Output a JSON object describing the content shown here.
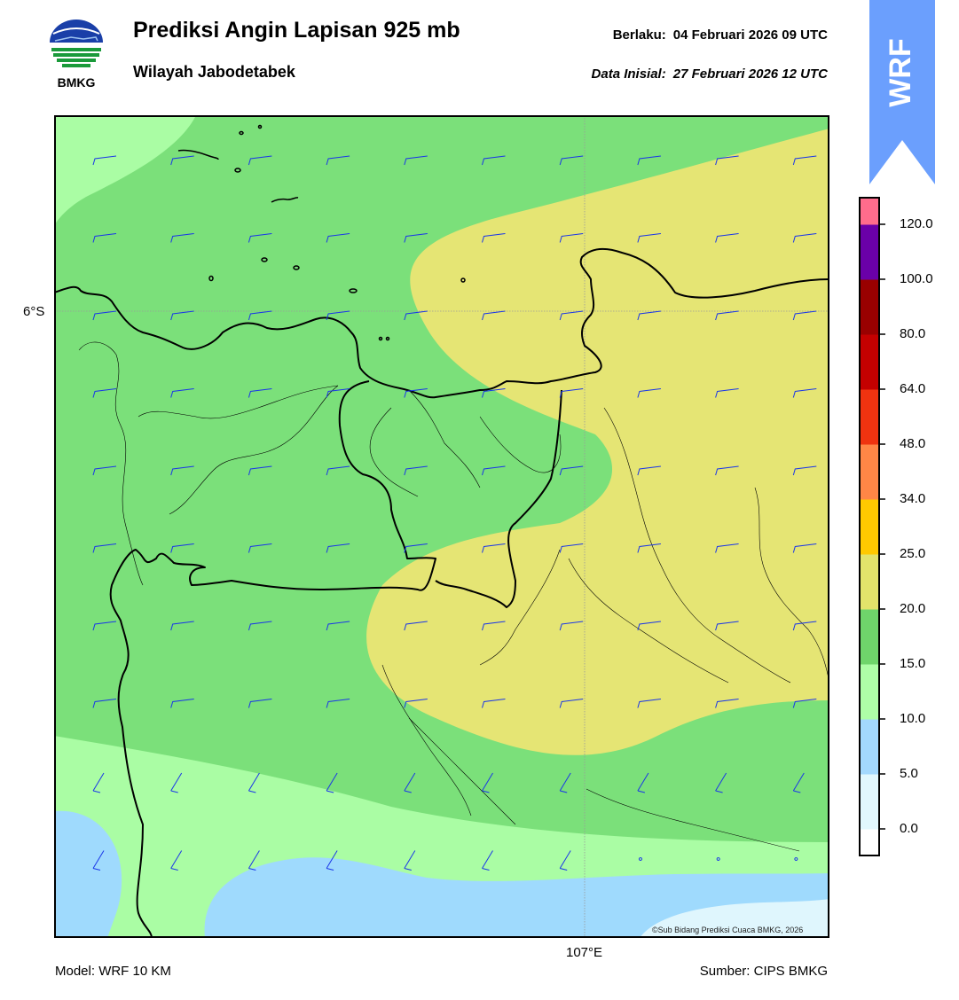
{
  "header": {
    "title": "Prediksi Angin Lapisan 925 mb",
    "subtitle": "Wilayah Jabodetabek",
    "valid_label": "Berlaku:",
    "valid_time": "04 Februari 2026 09 UTC",
    "init_label": "Data Inisial:",
    "init_time": "27 Februari 2026 12 UTC"
  },
  "logo": {
    "text": "BMKG",
    "icon": "bmkg-logo-icon"
  },
  "badge": {
    "text": "WRF",
    "color": "#6b9ffd"
  },
  "map": {
    "lat_label": "6°S",
    "lon_label": "107°E",
    "copyright": "©Sub Bidang Prediksi Cuaca BMKG, 2026",
    "zone_colors": {
      "very_light_blue": "#dff6fd",
      "light_blue": "#9fdafd",
      "light_green": "#aafda4",
      "green": "#7be07a",
      "yellow": "#e5e574"
    },
    "barb_color": "#1a36e8"
  },
  "colorbar": {
    "colors": [
      "#ffffff",
      "#e1f7fd",
      "#a3d8fd",
      "#aefea7",
      "#6fd56b",
      "#e2e36b",
      "#ffc900",
      "#ff8646",
      "#ef3310",
      "#c40000",
      "#990000",
      "#6a00a8",
      "#ff6c8c"
    ],
    "labels": [
      "0.0",
      "5.0",
      "10.0",
      "15.0",
      "20.0",
      "25.0",
      "34.0",
      "48.0",
      "64.0",
      "80.0",
      "100.0",
      "120.0"
    ]
  },
  "footer": {
    "model": "Model: WRF 10 KM",
    "source": "Sumber: CIPS BMKG"
  }
}
